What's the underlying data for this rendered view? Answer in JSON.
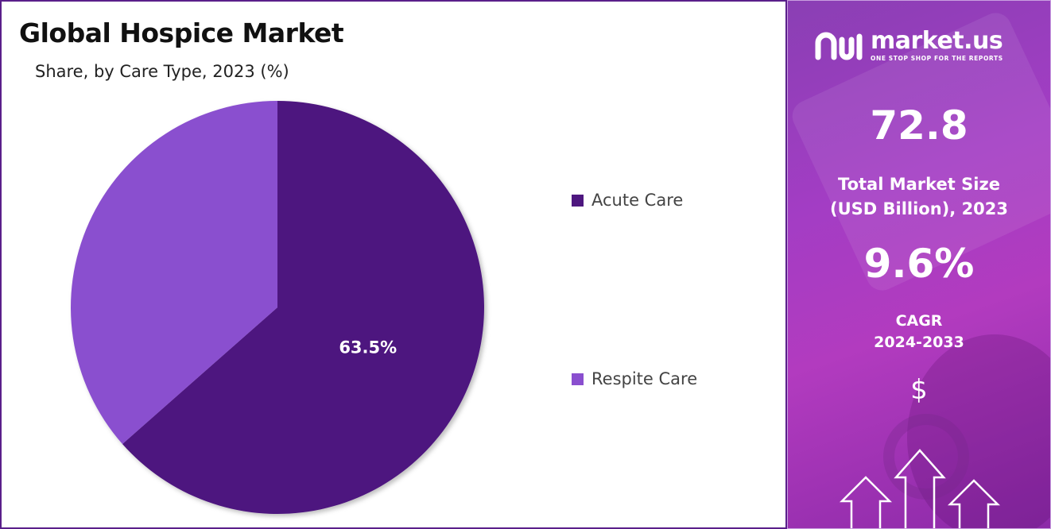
{
  "chart_data": {
    "type": "pie",
    "title": "Global Hospice Market",
    "subtitle": "Share, by Care Type, 2023 (%)",
    "categories": [
      "Acute Care",
      "Respite Care"
    ],
    "values": [
      63.5,
      36.5
    ],
    "data_labels": [
      "63.5%",
      ""
    ],
    "colors": [
      "#4e177f",
      "#8a4fcf"
    ],
    "legend_position": "right"
  },
  "sidebar": {
    "brand_name": "market.us",
    "brand_tagline": "ONE STOP SHOP FOR THE REPORTS",
    "market_size_value": "72.8",
    "market_size_label_line1": "Total Market Size",
    "market_size_label_line2": "(USD Billion), 2023",
    "cagr_value": "9.6%",
    "cagr_label_line1": "CAGR",
    "cagr_label_line2": "2024-2033",
    "currency_symbol": "$",
    "icons": [
      "logo-icon",
      "dollar-icon",
      "up-arrows-icon"
    ]
  }
}
